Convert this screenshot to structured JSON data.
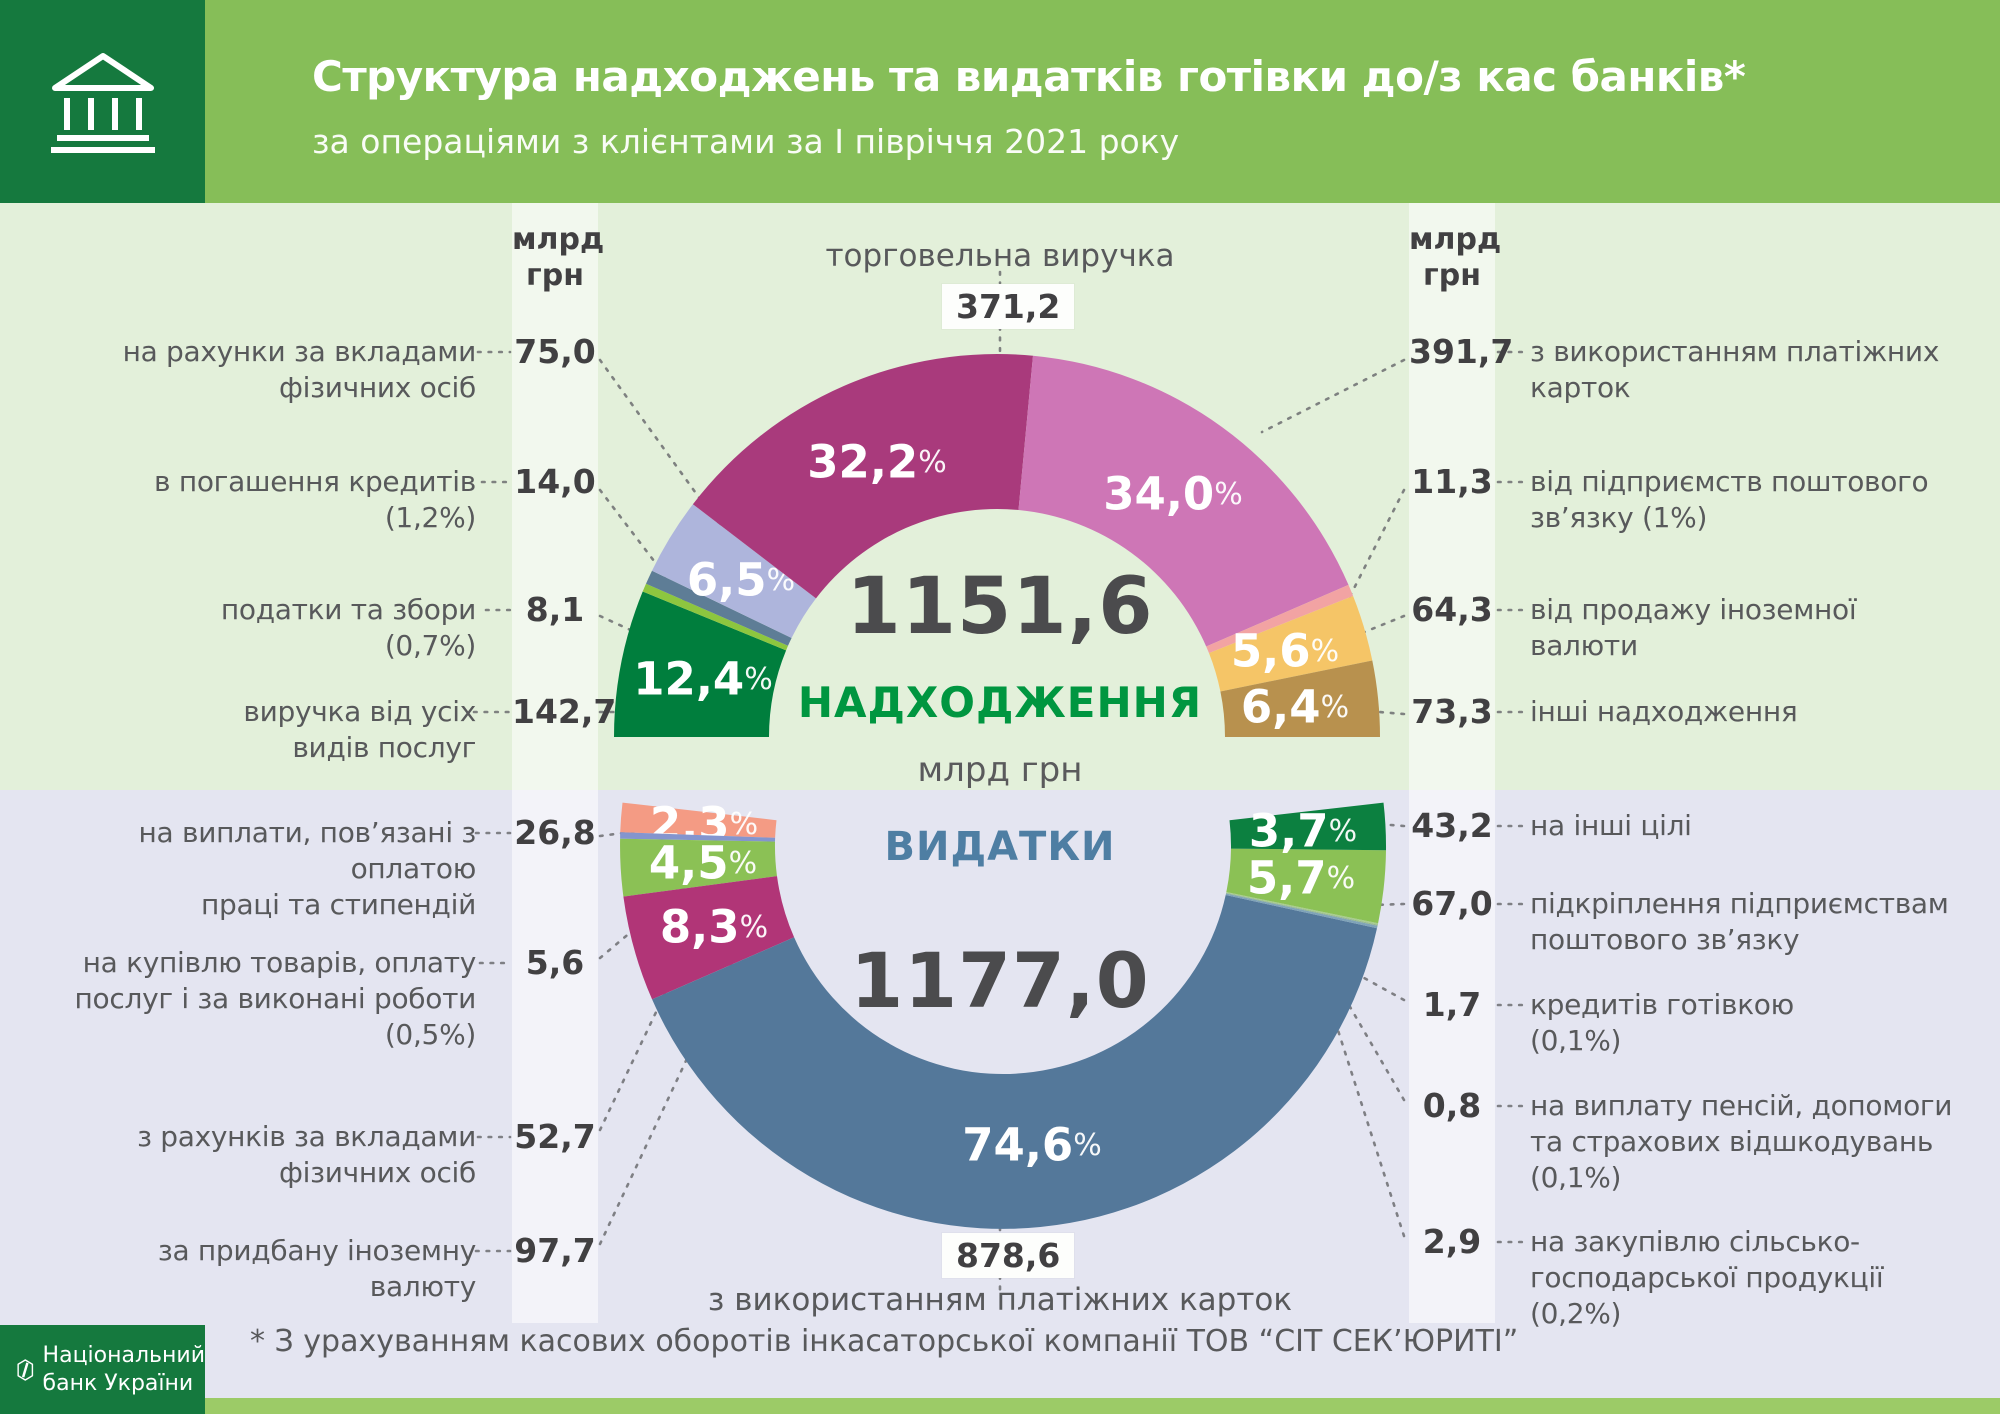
{
  "header": {
    "title": "Структура надходжень та видатків готівки до/з кас банків*",
    "subtitle": "за операціями з клієнтами за І півріччя 2021 року"
  },
  "branding": {
    "org_name": "Національний\nбанк України"
  },
  "columns": {
    "unit_header": "млрд\nгрн"
  },
  "center": {
    "inflow_total": "1151,6",
    "inflow_label": "НАДХОДЖЕННЯ",
    "unit": "млрд грн",
    "outflow_label": "ВИДАТКИ",
    "outflow_total": "1177,0"
  },
  "callouts": {
    "top": {
      "label": "торговельна виручка",
      "value": "371,2"
    },
    "bottom": {
      "value": "878,6",
      "label": "з використанням платіжних карток"
    }
  },
  "left_top_rows": [
    {
      "value": "75,0",
      "label": "на рахунки за вкладами\nфізичних осіб"
    },
    {
      "value": "14,0",
      "label": "в погашення кредитів\n(1,2%)"
    },
    {
      "value": "8,1",
      "label": "податки та збори\n(0,7%)"
    },
    {
      "value": "142,7",
      "label": "виручка від усіх\nвидів послуг"
    }
  ],
  "right_top_rows": [
    {
      "value": "391,7",
      "label": "з використанням платіжних\nкарток"
    },
    {
      "value": "11,3",
      "label": "від підприємств поштового\nзв’язку (1%)"
    },
    {
      "value": "64,3",
      "label": "від продажу іноземної\nвалюти"
    },
    {
      "value": "73,3",
      "label": "інші надходження"
    }
  ],
  "left_bottom_rows": [
    {
      "value": "26,8",
      "label": "на виплати, пов’язані з оплатою\nпраці та стипендій"
    },
    {
      "value": "5,6",
      "label": "на купівлю товарів, оплату\nпослуг і за виконані роботи\n(0,5%)"
    },
    {
      "value": "52,7",
      "label": "з рахунків за вкладами\nфізичних осіб"
    },
    {
      "value": "97,7",
      "label": "за придбану іноземну\nвалюту"
    }
  ],
  "right_bottom_rows": [
    {
      "value": "43,2",
      "label": "на інші цілі"
    },
    {
      "value": "67,0",
      "label": "підкріплення підприємствам\nпоштового зв’язку"
    },
    {
      "value": "1,7",
      "label": "кредитів готівкою\n(0,1%)"
    },
    {
      "value": "0,8",
      "label": "на виплату пенсій, допомоги\nта страхових відшкодувань\n(0,1%)"
    },
    {
      "value": "2,9",
      "label": "на закупівлю сільсько-\nгосподарської продукції\n(0,2%)"
    }
  ],
  "footnote": "* З урахуванням касових оборотів інкасаторської компанії ТОВ “СІТ СЕК’ЮРИТІ”",
  "colors": {
    "header_green": "#86BE58",
    "brand_dark_green": "#15793E",
    "top_background": "#E3F0DA",
    "bottom_background": "#E4E5F1",
    "footer_strip": "#9CCB67",
    "inflow_accent": "#009640",
    "outflow_accent": "#4E7EA3",
    "text_dark": "#414042",
    "text_gray": "#58595B"
  },
  "chart_data": [
    {
      "type": "pie",
      "variant": "semi-donut-upper",
      "title": "НАДХОДЖЕННЯ",
      "total": 1151.6,
      "unit": "млрд грн",
      "legend_position": "sides",
      "segments": [
        {
          "label": "виручка від усіх видів послуг",
          "value": 142.7,
          "pct": 12.4,
          "pct_label": "12,4",
          "color": "#007E3D"
        },
        {
          "label": "податки та збори",
          "value": 8.1,
          "pct": 0.7,
          "color": "#8DC63F"
        },
        {
          "label": "в погашення кредитів",
          "value": 14.0,
          "pct": 1.2,
          "color": "#5E7D96"
        },
        {
          "label": "на рахунки за вкладами фізичних осіб",
          "value": 75.0,
          "pct": 6.5,
          "pct_label": "6,5",
          "color": "#AEB5DC"
        },
        {
          "label": "торговельна виручка",
          "value": 371.2,
          "pct": 32.2,
          "pct_label": "32,2",
          "color": "#A93A7C"
        },
        {
          "label": "з використанням платіжних карток",
          "value": 391.7,
          "pct": 34.0,
          "pct_label": "34,0",
          "color": "#CE76B6"
        },
        {
          "label": "від підприємств поштового зв’язку",
          "value": 11.3,
          "pct": 1.0,
          "color": "#F2A3A3"
        },
        {
          "label": "від продажу іноземної валюти",
          "value": 64.3,
          "pct": 5.6,
          "pct_label": "5,6",
          "color": "#F5C567"
        },
        {
          "label": "інші надходження",
          "value": 73.3,
          "pct": 6.4,
          "pct_label": "6,4",
          "color": "#B8914E"
        }
      ]
    },
    {
      "type": "pie",
      "variant": "semi-donut-lower",
      "title": "ВИДАТКИ",
      "total": 1177.0,
      "unit": "млрд грн",
      "legend_position": "sides",
      "segments": [
        {
          "label": "на виплати, пов’язані з оплатою праці та стипендій",
          "value": 26.8,
          "pct": 2.3,
          "pct_label": "2,3",
          "color": "#F49B84"
        },
        {
          "label": "на купівлю товарів, оплату послуг і за виконані роботи",
          "value": 5.6,
          "pct": 0.5,
          "color": "#8495CE"
        },
        {
          "label": "з рахунків за вкладами фізичних осіб",
          "value": 52.7,
          "pct": 4.5,
          "pct_label": "4,5",
          "color": "#8BC155"
        },
        {
          "label": "за придбану іноземну валюту",
          "value": 97.7,
          "pct": 8.3,
          "pct_label": "8,3",
          "color": "#B13577"
        },
        {
          "label": "з використанням платіжних карток",
          "value": 878.6,
          "pct": 74.6,
          "pct_label": "74,6",
          "color": "#54789A"
        },
        {
          "label": "на закупівлю сільськогосподарської продукції",
          "value": 2.9,
          "pct": 0.2,
          "color": "#7FA3B8"
        },
        {
          "label": "на виплату пенсій, допомоги та страхових відшкодувань",
          "value": 0.8,
          "pct": 0.1,
          "color": "#96B98E"
        },
        {
          "label": "кредитів готівкою",
          "value": 1.7,
          "pct": 0.1,
          "color": "#A8CD8D"
        },
        {
          "label": "підкріплення підприємствам поштового зв’язку",
          "value": 67.0,
          "pct": 5.7,
          "pct_label": "5,7",
          "color": "#8BC155"
        },
        {
          "label": "на інші цілі",
          "value": 43.2,
          "pct": 3.7,
          "pct_label": "3,7",
          "color": "#0C8040"
        }
      ]
    }
  ]
}
